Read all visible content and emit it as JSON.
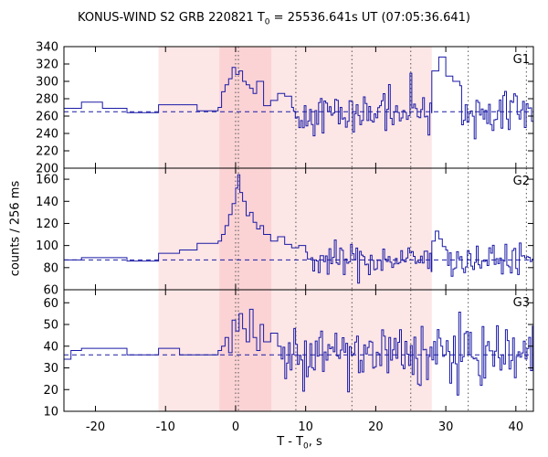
{
  "chart_data": {
    "type": "line",
    "title": "KONUS-WIND S2 GRB 220821 T0 = 25536.641s UT (07:05:36.641)",
    "title_parts": {
      "pre": "KONUS-WIND S2 GRB 220821 T",
      "sub": "0",
      "post": " = 25536.641s UT (07:05:36.641)"
    },
    "xlabel": "T - T0, s",
    "xlabel_parts": {
      "pre": "T - T",
      "sub": "0",
      "post": ", s"
    },
    "ylabel": "counts / 256 ms",
    "xlim": [
      -24.5,
      42.5
    ],
    "xticks": [
      -20,
      -10,
      0,
      10,
      20,
      30,
      40
    ],
    "grid": false,
    "shaded_regions": [
      {
        "x": [
          -11,
          28
        ],
        "color": "#fde6e6"
      },
      {
        "x": [
          -2.3,
          5.1
        ],
        "color": "#fbd3d5"
      }
    ],
    "dotted_lines": [
      0.0,
      0.4,
      8.6,
      16.6,
      25.0,
      33.2,
      41.5
    ],
    "panels": [
      {
        "label": "G1",
        "ylim": [
          200,
          340
        ],
        "yticks": [
          200,
          220,
          240,
          260,
          280,
          300,
          320,
          340
        ],
        "background": 265,
        "noise": 14,
        "series": [
          {
            "x": [
              -24.5,
              -22,
              -22,
              -19,
              -19,
              -15.5,
              -15.5,
              -11,
              -11,
              -5.5,
              -5.5,
              -2.5,
              -2.5,
              -2
            ],
            "y": [
              269,
              269,
              276,
              276,
              269,
              269,
              264,
              264,
              273,
              273,
              266,
              266,
              270,
              270
            ]
          },
          {
            "x": [
              -2,
              -1.5,
              -1,
              -0.5,
              0,
              0.5,
              1,
              1.5,
              2,
              2.5,
              3,
              4,
              5,
              6,
              7,
              8
            ],
            "y": [
              288,
              296,
              303,
              316,
              308,
              312,
              300,
              296,
              292,
              286,
              300,
              272,
              278,
              286,
              283,
              270
            ]
          },
          {
            "x": [
              28,
              29,
              30,
              31,
              32
            ],
            "y": [
              312,
              328,
              306,
              300,
              295
            ]
          }
        ]
      },
      {
        "label": "G2",
        "ylim": [
          60,
          170
        ],
        "yticks": [
          60,
          80,
          100,
          120,
          140,
          160
        ],
        "background": 87,
        "noise": 7,
        "series": [
          {
            "x": [
              -24.5,
              -22,
              -22,
              -15.5,
              -15.5,
              -11,
              -11,
              -8,
              -8,
              -5.5,
              -5.5,
              -2.5,
              -2.5,
              -2
            ],
            "y": [
              87,
              87,
              89,
              89,
              86,
              86,
              93,
              93,
              96,
              96,
              102,
              102,
              104,
              104
            ]
          },
          {
            "x": [
              -2,
              -1.5,
              -1,
              -0.5,
              0,
              0.3,
              0.6,
              1,
              1.5,
              2,
              2.5,
              3,
              3.5,
              4,
              5,
              6,
              7,
              8,
              9,
              10
            ],
            "y": [
              110,
              118,
              128,
              138,
              152,
              164,
              148,
              140,
              127,
              130,
              121,
              115,
              118,
              110,
              104,
              108,
              101,
              98,
              100,
              94
            ]
          },
          {
            "x": [
              28,
              28.5,
              29,
              29.5,
              30
            ],
            "y": [
              104,
              113,
              106,
              99,
              96
            ]
          }
        ]
      },
      {
        "label": "G3",
        "ylim": [
          10,
          66
        ],
        "yticks": [
          10,
          20,
          30,
          40,
          50,
          60
        ],
        "background": 36,
        "noise": 7,
        "series": [
          {
            "x": [
              -24.5,
              -23.5,
              -23.5,
              -22,
              -22,
              -15.5,
              -15.5,
              -11,
              -11,
              -8,
              -8,
              -2.5,
              -2.5,
              -2
            ],
            "y": [
              34,
              34,
              38,
              38,
              39,
              39,
              36,
              36,
              39,
              39,
              36,
              36,
              38,
              38
            ]
          },
          {
            "x": [
              -2,
              -1.5,
              -1,
              -0.5,
              0,
              0.5,
              1,
              1.5,
              2,
              2.5,
              3,
              3.5,
              4,
              5,
              6
            ],
            "y": [
              40,
              44,
              37,
              52,
              47,
              55,
              48,
              42,
              57,
              44,
              38,
              50,
              42,
              46,
              40
            ]
          }
        ]
      }
    ],
    "colors": {
      "series": "#1a1aa6",
      "background_fit": "#1a1aa6",
      "dotted": "#555555"
    }
  }
}
